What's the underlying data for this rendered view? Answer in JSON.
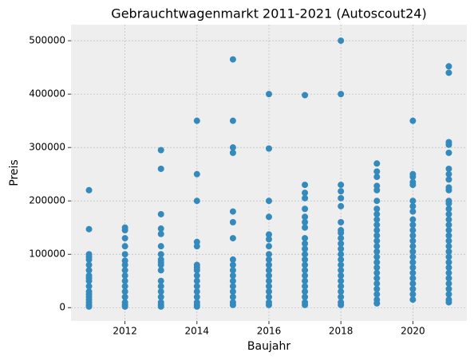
{
  "chart_data": {
    "type": "scatter",
    "title": "Gebrauchtwagenmarkt 2011-2021 (Autoscout24)",
    "x_label": "Baujahr",
    "y_label": "Preis",
    "color": "#348abd",
    "grid": true,
    "xlim": [
      2010.5,
      2021.5
    ],
    "ylim": [
      -25000,
      530000
    ],
    "xticks": [
      2012,
      2014,
      2016,
      2018,
      2020
    ],
    "yticks": [
      0,
      100000,
      200000,
      300000,
      400000,
      500000
    ],
    "x": [
      2011,
      2011,
      2011,
      2011,
      2011,
      2011,
      2011,
      2011,
      2011,
      2011,
      2011,
      2011,
      2011,
      2011,
      2011,
      2011,
      2011,
      2011,
      2012,
      2012,
      2012,
      2012,
      2012,
      2012,
      2012,
      2012,
      2012,
      2012,
      2012,
      2012,
      2012,
      2012,
      2012,
      2012,
      2013,
      2013,
      2013,
      2013,
      2013,
      2013,
      2013,
      2013,
      2013,
      2013,
      2013,
      2013,
      2013,
      2013,
      2013,
      2013,
      2013,
      2013,
      2014,
      2014,
      2014,
      2014,
      2014,
      2014,
      2014,
      2014,
      2014,
      2014,
      2014,
      2014,
      2014,
      2014,
      2014,
      2014,
      2015,
      2015,
      2015,
      2015,
      2015,
      2015,
      2015,
      2015,
      2015,
      2015,
      2015,
      2015,
      2015,
      2015,
      2015,
      2015,
      2015,
      2016,
      2016,
      2016,
      2016,
      2016,
      2016,
      2016,
      2016,
      2016,
      2016,
      2016,
      2016,
      2016,
      2016,
      2016,
      2016,
      2016,
      2016,
      2017,
      2017,
      2017,
      2017,
      2017,
      2017,
      2017,
      2017,
      2017,
      2017,
      2017,
      2017,
      2017,
      2017,
      2017,
      2017,
      2017,
      2017,
      2017,
      2017,
      2017,
      2017,
      2018,
      2018,
      2018,
      2018,
      2018,
      2018,
      2018,
      2018,
      2018,
      2018,
      2018,
      2018,
      2018,
      2018,
      2018,
      2018,
      2018,
      2018,
      2018,
      2018,
      2018,
      2018,
      2018,
      2019,
      2019,
      2019,
      2019,
      2019,
      2019,
      2019,
      2019,
      2019,
      2019,
      2019,
      2019,
      2019,
      2019,
      2019,
      2019,
      2019,
      2019,
      2019,
      2019,
      2019,
      2019,
      2019,
      2019,
      2019,
      2020,
      2020,
      2020,
      2020,
      2020,
      2020,
      2020,
      2020,
      2020,
      2020,
      2020,
      2020,
      2020,
      2020,
      2020,
      2020,
      2020,
      2020,
      2020,
      2020,
      2020,
      2020,
      2020,
      2020,
      2021,
      2021,
      2021,
      2021,
      2021,
      2021,
      2021,
      2021,
      2021,
      2021,
      2021,
      2021,
      2021,
      2021,
      2021,
      2021,
      2021,
      2021,
      2021,
      2021,
      2021,
      2021,
      2021,
      2021,
      2021,
      2021,
      2021,
      2021,
      2021,
      2021,
      2021
    ],
    "values": [
      220000,
      147000,
      100000,
      95000,
      90000,
      80000,
      70000,
      60000,
      55000,
      50000,
      40000,
      30000,
      25000,
      20000,
      15000,
      10000,
      5000,
      2000,
      150000,
      145000,
      130000,
      115000,
      100000,
      88000,
      80000,
      70000,
      60000,
      50000,
      40000,
      30000,
      20000,
      10000,
      5000,
      2000,
      295000,
      260000,
      175000,
      148000,
      138000,
      115000,
      100000,
      90000,
      85000,
      80000,
      70000,
      50000,
      40000,
      30000,
      20000,
      10000,
      5000,
      2000,
      350000,
      250000,
      200000,
      123000,
      115000,
      80000,
      75000,
      70000,
      60000,
      50000,
      40000,
      30000,
      20000,
      10000,
      5000,
      2000,
      465000,
      350000,
      300000,
      290000,
      180000,
      160000,
      130000,
      90000,
      80000,
      70000,
      60000,
      50000,
      40000,
      30000,
      20000,
      10000,
      5000,
      400000,
      298000,
      200000,
      170000,
      137000,
      128000,
      115000,
      100000,
      90000,
      80000,
      70000,
      60000,
      50000,
      40000,
      30000,
      20000,
      10000,
      5000,
      398000,
      230000,
      215000,
      205000,
      185000,
      170000,
      160000,
      150000,
      130000,
      120000,
      110000,
      100000,
      90000,
      80000,
      70000,
      60000,
      50000,
      40000,
      30000,
      20000,
      10000,
      5000,
      500000,
      400000,
      230000,
      218000,
      205000,
      190000,
      160000,
      145000,
      140000,
      130000,
      120000,
      110000,
      100000,
      90000,
      80000,
      70000,
      60000,
      50000,
      40000,
      30000,
      20000,
      10000,
      5000,
      270000,
      255000,
      245000,
      228000,
      220000,
      200000,
      185000,
      175000,
      165000,
      155000,
      145000,
      135000,
      125000,
      115000,
      105000,
      95000,
      85000,
      75000,
      65000,
      55000,
      45000,
      35000,
      25000,
      15000,
      8000,
      350000,
      250000,
      245000,
      235000,
      230000,
      200000,
      190000,
      180000,
      165000,
      155000,
      145000,
      135000,
      125000,
      115000,
      105000,
      95000,
      85000,
      75000,
      65000,
      55000,
      45000,
      35000,
      25000,
      15000,
      452000,
      440000,
      310000,
      305000,
      290000,
      260000,
      250000,
      240000,
      225000,
      220000,
      200000,
      195000,
      185000,
      175000,
      165000,
      155000,
      145000,
      135000,
      125000,
      115000,
      105000,
      95000,
      85000,
      75000,
      65000,
      55000,
      45000,
      35000,
      25000,
      15000,
      10000
    ]
  }
}
